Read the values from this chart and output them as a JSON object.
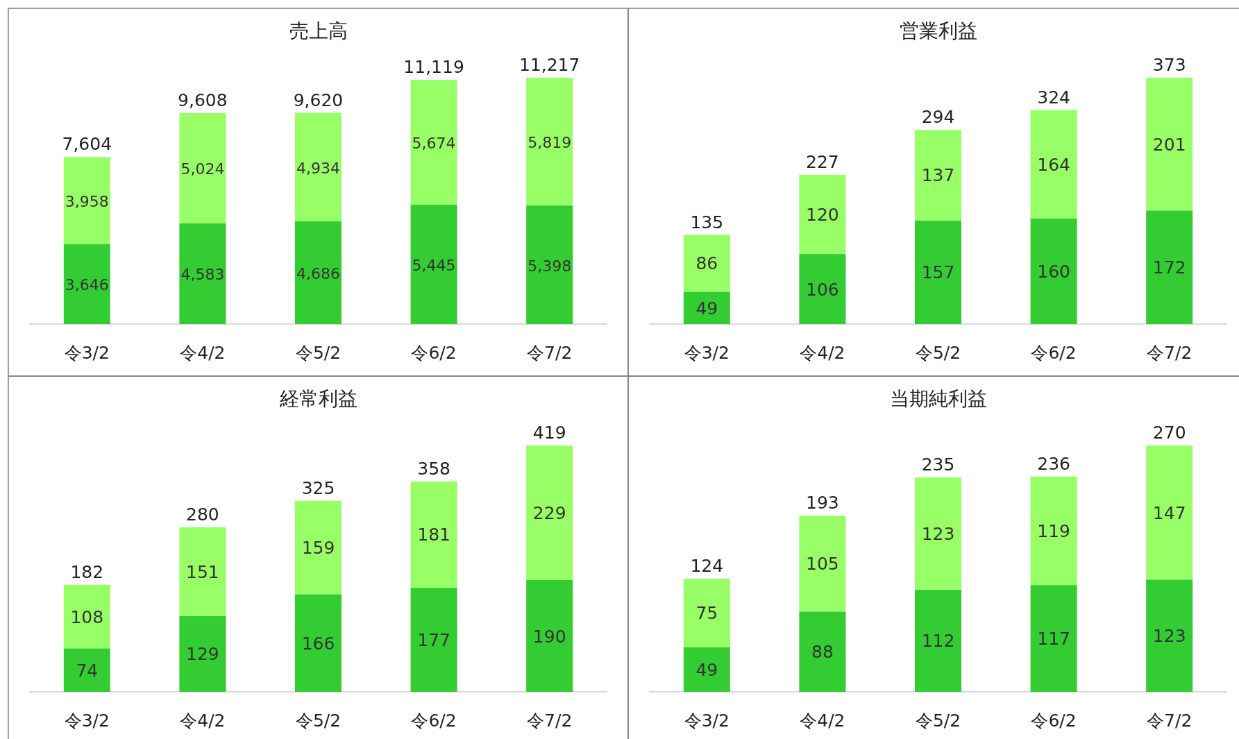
{
  "chart_data": [
    {
      "type": "bar",
      "title": "売上高",
      "stacked": true,
      "categories": [
        "令3/2",
        "令4/2",
        "令5/2",
        "令6/2",
        "令7/2"
      ],
      "series": [
        {
          "color": "#33cc33",
          "values": [
            3646,
            4583,
            4686,
            5445,
            5398
          ],
          "value_labels": [
            "3,646",
            "4,583",
            "4,686",
            "5,445",
            "5,398"
          ]
        },
        {
          "color": "#99ff66",
          "values": [
            3958,
            5024,
            4934,
            5674,
            5819
          ],
          "value_labels": [
            "3,958",
            "5,024",
            "4,934",
            "5,674",
            "5,819"
          ]
        }
      ],
      "totals": [
        "7,604",
        "9,608",
        "9,620",
        "11,119",
        "11,217"
      ]
    },
    {
      "type": "bar",
      "title": "営業利益",
      "stacked": true,
      "data_labels": true,
      "categories": [
        "令3/2",
        "令4/2",
        "令5/2",
        "令6/2",
        "令7/2"
      ],
      "series": [
        {
          "color": "#33cc33",
          "values": [
            49,
            106,
            157,
            160,
            172
          ]
        },
        {
          "color": "#99ff66",
          "values": [
            86,
            120,
            137,
            164,
            201
          ]
        }
      ],
      "totals": [
        "135",
        "227",
        "294",
        "324",
        "373"
      ]
    },
    {
      "type": "bar",
      "title": "経常利益",
      "stacked": true,
      "data_labels": true,
      "categories": [
        "令3/2",
        "令4/2",
        "令5/2",
        "令6/2",
        "令7/2"
      ],
      "series": [
        {
          "color": "#33cc33",
          "values": [
            74,
            129,
            166,
            177,
            190
          ]
        },
        {
          "color": "#99ff66",
          "values": [
            108,
            151,
            159,
            181,
            229
          ]
        }
      ],
      "totals": [
        "182",
        "280",
        "325",
        "358",
        "419"
      ]
    },
    {
      "type": "bar",
      "title": "当期純利益",
      "stacked": true,
      "data_labels": true,
      "categories": [
        "令3/2",
        "令4/2",
        "令5/2",
        "令6/2",
        "令7/2"
      ],
      "series": [
        {
          "color": "#33cc33",
          "values": [
            49,
            88,
            112,
            117,
            123
          ]
        },
        {
          "color": "#99ff66",
          "values": [
            75,
            105,
            123,
            119,
            147
          ]
        }
      ],
      "totals": [
        "124",
        "193",
        "235",
        "236",
        "270"
      ]
    }
  ]
}
